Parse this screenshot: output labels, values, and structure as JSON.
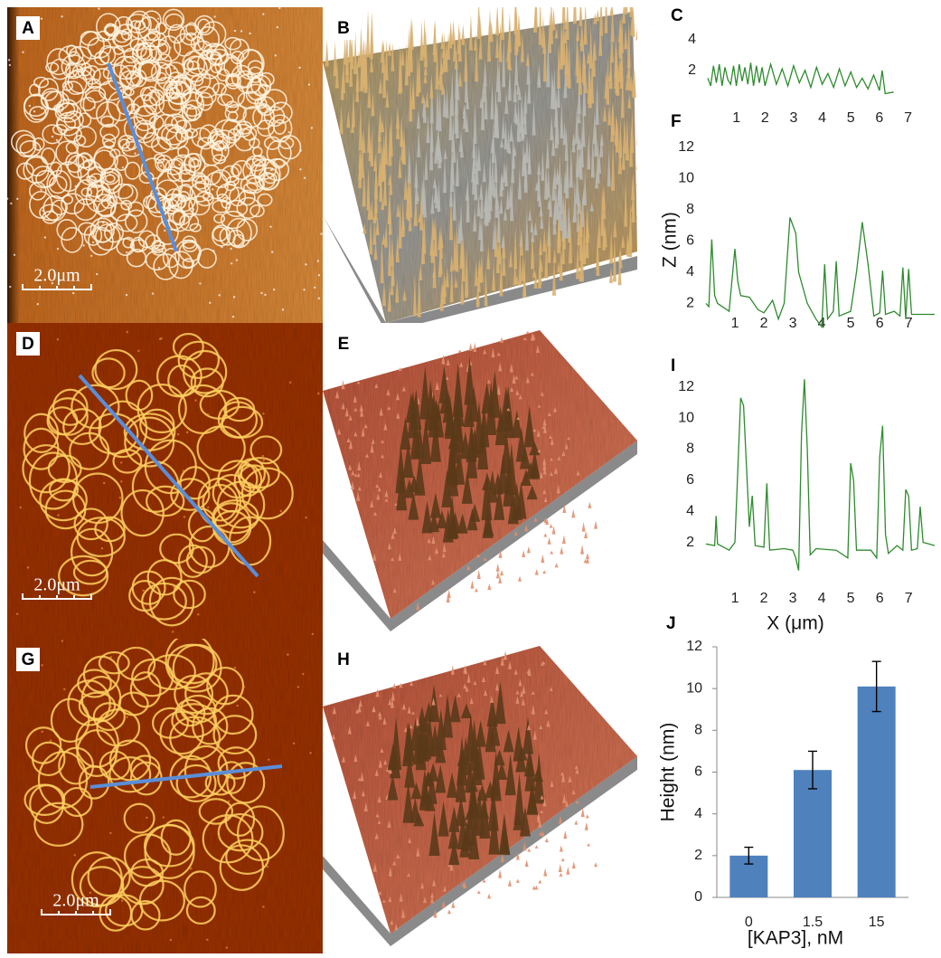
{
  "image_panels": [
    {
      "label": "A",
      "scale_bar": "2.0μm"
    },
    {
      "label": "B"
    },
    {
      "label": "D",
      "scale_bar": "2.0μm"
    },
    {
      "label": "E"
    },
    {
      "label": "G",
      "scale_bar": "2.0μm"
    },
    {
      "label": "H"
    }
  ],
  "chart_data": [
    {
      "type": "line",
      "label": "C",
      "color": "#2e8b2e",
      "x": [
        0,
        0.1,
        0.2,
        0.3,
        0.4,
        0.5,
        0.6,
        0.7,
        0.8,
        0.9,
        1.0,
        1.1,
        1.2,
        1.3,
        1.4,
        1.5,
        1.6,
        1.7,
        1.8,
        1.9,
        2.0,
        2.2,
        2.4,
        2.6,
        2.8,
        3.0,
        3.2,
        3.4,
        3.6,
        3.8,
        4.0,
        4.2,
        4.4,
        4.6,
        4.8,
        5.0,
        5.2,
        5.4,
        5.6,
        5.8,
        6.0,
        6.1,
        6.2,
        6.5
      ],
      "values": [
        1.5,
        1.0,
        2.3,
        1.2,
        2.4,
        1.0,
        2.2,
        1.4,
        1.1,
        2.3,
        1.0,
        2.4,
        1.3,
        2.2,
        1.1,
        2.5,
        1.0,
        2.3,
        1.2,
        2.2,
        1.0,
        2.4,
        1.1,
        2.1,
        1.0,
        2.3,
        1.2,
        2.0,
        0.9,
        2.2,
        1.1,
        1.8,
        0.9,
        2.1,
        1.0,
        1.9,
        0.9,
        1.5,
        0.8,
        1.7,
        0.7,
        2.0,
        0.5,
        0.6
      ],
      "xlim": [
        0,
        7.9
      ],
      "ylim": [
        0,
        4.8
      ],
      "xticks": [
        1,
        2,
        3,
        4,
        5,
        6,
        7
      ],
      "yticks": [
        2,
        4
      ]
    },
    {
      "type": "line",
      "label": "F",
      "color": "#2e8b2e",
      "ylabel": "Z (nm)",
      "x": [
        0,
        0.1,
        0.2,
        0.3,
        0.4,
        0.8,
        1.0,
        1.1,
        1.2,
        1.5,
        1.8,
        2.0,
        2.3,
        2.5,
        2.7,
        2.9,
        3.1,
        3.2,
        3.5,
        3.8,
        4.0,
        4.1,
        4.2,
        4.4,
        4.5,
        4.6,
        5.0,
        5.2,
        5.4,
        5.6,
        5.8,
        6.0,
        6.1,
        6.2,
        6.5,
        6.7,
        6.8,
        6.9,
        7.0,
        7.1,
        7.5,
        7.9
      ],
      "values": [
        2.0,
        1.8,
        6.1,
        2.5,
        2.0,
        1.5,
        5.5,
        3.4,
        2.5,
        2.4,
        1.6,
        1.4,
        2.2,
        1.0,
        2.0,
        7.5,
        6.5,
        4.0,
        2.0,
        1.0,
        0.5,
        4.5,
        1.0,
        1.5,
        4.7,
        1.2,
        1.5,
        4.0,
        7.2,
        4.5,
        1.2,
        1.4,
        4.1,
        1.3,
        1.5,
        1.2,
        4.3,
        1.0,
        4.2,
        1.3,
        1.3,
        1.3
      ],
      "xlim": [
        0,
        7.9
      ],
      "ylim": [
        0,
        12.5
      ],
      "xticks": [
        1,
        2,
        3,
        4,
        5,
        6,
        7
      ],
      "yticks": [
        2,
        4,
        6,
        8,
        10,
        12
      ]
    },
    {
      "type": "line",
      "label": "I",
      "color": "#2e8b2e",
      "xlabel": "X (μm)",
      "x": [
        0,
        0.3,
        0.35,
        0.4,
        0.8,
        1.0,
        1.2,
        1.3,
        1.5,
        1.6,
        1.7,
        2.0,
        2.1,
        2.2,
        2.7,
        3.0,
        3.1,
        3.2,
        3.3,
        3.4,
        3.5,
        3.6,
        3.8,
        4.5,
        4.9,
        5.0,
        5.1,
        5.2,
        5.7,
        5.9,
        6.0,
        6.1,
        6.2,
        6.3,
        6.6,
        6.8,
        6.9,
        7.0,
        7.1,
        7.3,
        7.4,
        7.5,
        7.7,
        7.9
      ],
      "values": [
        1.9,
        1.8,
        3.7,
        1.9,
        1.5,
        2.0,
        11.3,
        10.8,
        3.0,
        5.0,
        1.8,
        1.7,
        5.8,
        1.5,
        1.6,
        1.5,
        1.0,
        0.2,
        9.0,
        12.5,
        8.0,
        1.2,
        1.6,
        1.5,
        1.0,
        7.1,
        6.0,
        1.5,
        1.5,
        1.0,
        7.5,
        9.5,
        2.5,
        1.3,
        1.8,
        1.5,
        5.4,
        5.0,
        1.5,
        1.6,
        4.3,
        2.0,
        1.9,
        1.8
      ],
      "xlim": [
        0,
        7.9
      ],
      "ylim": [
        0,
        12.8
      ],
      "xticks": [
        1,
        2,
        3,
        4,
        5,
        6,
        7
      ],
      "yticks": [
        2,
        4,
        6,
        8,
        10,
        12
      ]
    },
    {
      "type": "bar",
      "label": "J",
      "color": "#4f81bd",
      "ylabel": "Height (nm)",
      "xlabel": "[KAP3], nM",
      "categories": [
        "0",
        "1.5",
        "15"
      ],
      "values": [
        2.0,
        6.1,
        10.1
      ],
      "errors": [
        0.4,
        0.9,
        1.2
      ],
      "ylim": [
        0,
        12
      ],
      "yticks": [
        0,
        2,
        4,
        6,
        8,
        10,
        12
      ]
    }
  ]
}
